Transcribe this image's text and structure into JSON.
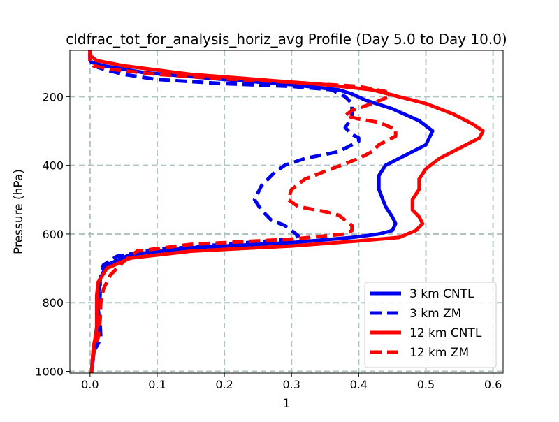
{
  "chart_data": {
    "type": "line",
    "title": "cldfrac_tot_for_analysis_horiz_avg Profile (Day 5.0 to Day 10.0)",
    "xlabel": "1",
    "ylabel": "Pressure (hPa)",
    "xlim": [
      -0.03,
      0.615
    ],
    "ylim": [
      1005,
      65
    ],
    "y_inverted": true,
    "grid": true,
    "legend_position": "lower-right",
    "x_ticks": [
      0.0,
      0.1,
      0.2,
      0.3,
      0.4,
      0.5,
      0.6
    ],
    "x_tick_labels": [
      "0.0",
      "0.1",
      "0.2",
      "0.3",
      "0.4",
      "0.5",
      "0.6"
    ],
    "y_ticks": [
      200,
      400,
      600,
      800,
      1000
    ],
    "y_tick_labels": [
      "200",
      "400",
      "600",
      "800",
      "1000"
    ],
    "series": [
      {
        "name": "3 km CNTL",
        "color": "#0000ee",
        "style": "solid",
        "x": [
          0.0,
          0.0,
          0.002,
          0.02,
          0.08,
          0.2,
          0.3,
          0.37,
          0.39,
          0.41,
          0.45,
          0.49,
          0.51,
          0.5,
          0.47,
          0.44,
          0.43,
          0.43,
          0.44,
          0.45,
          0.455,
          0.45,
          0.43,
          0.39,
          0.3,
          0.15,
          0.06,
          0.025,
          0.015,
          0.012,
          0.012,
          0.012,
          0.012,
          0.01,
          0.006,
          0.002
        ],
        "y": [
          65,
          90,
          100,
          110,
          130,
          150,
          165,
          180,
          192,
          210,
          235,
          270,
          300,
          340,
          370,
          400,
          430,
          470,
          520,
          550,
          570,
          590,
          600,
          610,
          625,
          640,
          660,
          690,
          730,
          780,
          830,
          870,
          900,
          920,
          940,
          1005
        ]
      },
      {
        "name": "3 km ZM",
        "color": "#0000ee",
        "style": "dashed",
        "x": [
          0.0,
          0.0,
          0.005,
          0.02,
          0.05,
          0.1,
          0.2,
          0.3,
          0.36,
          0.38,
          0.39,
          0.39,
          0.38,
          0.39,
          0.4,
          0.4,
          0.37,
          0.32,
          0.29,
          0.275,
          0.255,
          0.245,
          0.255,
          0.27,
          0.29,
          0.3,
          0.31,
          0.3,
          0.2,
          0.1,
          0.04,
          0.02,
          0.015,
          0.015,
          0.012,
          0.015,
          0.016,
          0.012,
          0.006,
          0.002
        ],
        "y": [
          65,
          100,
          110,
          120,
          135,
          150,
          162,
          170,
          180,
          200,
          220,
          260,
          290,
          310,
          320,
          330,
          360,
          380,
          400,
          420,
          460,
          500,
          530,
          560,
          575,
          590,
          605,
          615,
          630,
          645,
          665,
          690,
          730,
          780,
          820,
          860,
          900,
          920,
          940,
          1005
        ]
      },
      {
        "name": "12 km CNTL",
        "color": "#ff0000",
        "style": "solid",
        "x": [
          0.0,
          0.0,
          0.01,
          0.05,
          0.15,
          0.25,
          0.35,
          0.42,
          0.46,
          0.5,
          0.54,
          0.57,
          0.585,
          0.58,
          0.55,
          0.52,
          0.5,
          0.49,
          0.49,
          0.48,
          0.48,
          0.49,
          0.495,
          0.485,
          0.46,
          0.4,
          0.3,
          0.15,
          0.06,
          0.025,
          0.012,
          0.01,
          0.01,
          0.01,
          0.008,
          0.005,
          0.002
        ],
        "y": [
          65,
          80,
          95,
          110,
          135,
          150,
          165,
          180,
          200,
          220,
          250,
          280,
          300,
          320,
          350,
          380,
          410,
          440,
          470,
          500,
          530,
          550,
          570,
          590,
          610,
          620,
          635,
          650,
          670,
          700,
          740,
          780,
          830,
          870,
          900,
          930,
          1005
        ]
      },
      {
        "name": "12 km ZM",
        "color": "#ff0000",
        "style": "dashed",
        "x": [
          0.0,
          0.0,
          0.005,
          0.03,
          0.1,
          0.2,
          0.3,
          0.4,
          0.44,
          0.445,
          0.42,
          0.39,
          0.38,
          0.4,
          0.43,
          0.455,
          0.455,
          0.43,
          0.42,
          0.4,
          0.36,
          0.32,
          0.3,
          0.295,
          0.31,
          0.35,
          0.37,
          0.38,
          0.39,
          0.39,
          0.38,
          0.3,
          0.15,
          0.07,
          0.05,
          0.03,
          0.02,
          0.016,
          0.015,
          0.012,
          0.006,
          0.002
        ],
        "y": [
          65,
          100,
          110,
          120,
          135,
          148,
          158,
          170,
          185,
          200,
          220,
          240,
          255,
          265,
          275,
          295,
          315,
          340,
          360,
          380,
          410,
          440,
          470,
          500,
          520,
          535,
          545,
          560,
          575,
          590,
          600,
          615,
          630,
          650,
          680,
          720,
          760,
          800,
          850,
          900,
          940,
          1005
        ]
      }
    ]
  }
}
